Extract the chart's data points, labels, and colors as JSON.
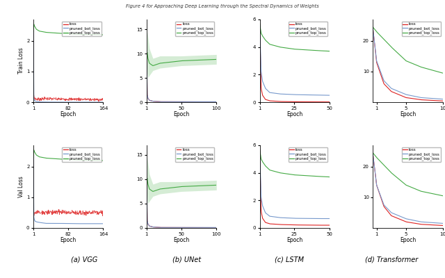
{
  "fig_title": "Figure 4 for Approaching Deep Learning through the Spectral Dynamics of Weights",
  "subtitle_labels": [
    "(a) VGG",
    "(b) UNet",
    "(c) LSTM",
    "(d) Transformer"
  ],
  "legend_labels": [
    "loss",
    "pruned_bot_loss",
    "pruned_top_loss"
  ],
  "line_colors": [
    "#dd2222",
    "#7799cc",
    "#44aa44"
  ],
  "subplots": {
    "vgg": {
      "train": {
        "xlim": [
          1,
          164
        ],
        "ylim": [
          0,
          2.7
        ],
        "xticks": [
          1,
          82,
          164
        ],
        "yticks": [
          0,
          1,
          2
        ],
        "loss_x": [
          1,
          2,
          3,
          5,
          8,
          15,
          30,
          60,
          100,
          164
        ],
        "loss_y": [
          2.3,
          0.25,
          0.15,
          0.12,
          0.1,
          0.1,
          0.12,
          0.1,
          0.1,
          0.08
        ],
        "loss_noise": 0.025,
        "bot_x": [
          1,
          2,
          3,
          5,
          8,
          15,
          30,
          60,
          100,
          164
        ],
        "bot_y": [
          2.3,
          0.12,
          0.07,
          0.04,
          0.02,
          0.01,
          0.005,
          0.002,
          0.002,
          0.001
        ],
        "top_x": [
          1,
          2,
          3,
          5,
          8,
          15,
          30,
          60,
          100,
          164
        ],
        "top_y": [
          2.3,
          2.55,
          2.5,
          2.45,
          2.38,
          2.32,
          2.28,
          2.25,
          2.22,
          2.2
        ]
      },
      "val": {
        "xlim": [
          1,
          164
        ],
        "ylim": [
          0,
          2.7
        ],
        "xticks": [
          1,
          82,
          164
        ],
        "yticks": [
          0,
          1,
          2
        ],
        "loss_x": [
          1,
          2,
          3,
          5,
          8,
          15,
          30,
          60,
          100,
          164
        ],
        "loss_y": [
          2.3,
          0.55,
          0.5,
          0.5,
          0.52,
          0.5,
          0.5,
          0.52,
          0.5,
          0.5
        ],
        "loss_noise": 0.04,
        "bot_x": [
          1,
          2,
          3,
          5,
          8,
          15,
          30,
          60,
          100,
          164
        ],
        "bot_y": [
          2.3,
          0.35,
          0.28,
          0.22,
          0.2,
          0.18,
          0.15,
          0.15,
          0.14,
          0.14
        ],
        "top_x": [
          1,
          2,
          3,
          5,
          8,
          15,
          30,
          60,
          100,
          164
        ],
        "top_y": [
          2.3,
          2.55,
          2.5,
          2.45,
          2.38,
          2.32,
          2.28,
          2.25,
          2.22,
          2.2
        ]
      }
    },
    "unet": {
      "train": {
        "xlim": [
          1,
          100
        ],
        "ylim": [
          0,
          17
        ],
        "xticks": [
          1,
          50,
          100
        ],
        "yticks": [
          0,
          5,
          10,
          15
        ],
        "loss_x": [
          1,
          2,
          3,
          5,
          10,
          20,
          50,
          100
        ],
        "loss_y": [
          10.0,
          1.5,
          0.8,
          0.4,
          0.2,
          0.1,
          0.08,
          0.06
        ],
        "loss_noise": 0.0,
        "bot_x": [
          1,
          2,
          3,
          5,
          10,
          20,
          50,
          100
        ],
        "bot_y": [
          10.0,
          1.5,
          0.8,
          0.4,
          0.2,
          0.1,
          0.1,
          0.1
        ],
        "top_x": [
          1,
          2,
          3,
          5,
          10,
          20,
          50,
          100
        ],
        "top_y": [
          10.0,
          10.2,
          9.0,
          8.0,
          7.5,
          8.0,
          8.5,
          8.8
        ],
        "top_band_low": [
          10.0,
          6.0,
          5.0,
          5.5,
          6.5,
          7.0,
          7.5,
          7.8
        ],
        "top_band_high": [
          10.0,
          14.5,
          13.5,
          11.0,
          9.0,
          9.5,
          9.5,
          9.8
        ]
      },
      "val": {
        "xlim": [
          1,
          100
        ],
        "ylim": [
          0,
          17
        ],
        "xticks": [
          1,
          50,
          100
        ],
        "yticks": [
          0,
          5,
          10,
          15
        ],
        "loss_x": [
          1,
          2,
          3,
          5,
          10,
          20,
          50,
          100
        ],
        "loss_y": [
          10.0,
          1.5,
          0.8,
          0.4,
          0.2,
          0.1,
          0.08,
          0.06
        ],
        "loss_noise": 0.0,
        "bot_x": [
          1,
          2,
          3,
          5,
          10,
          20,
          50,
          100
        ],
        "bot_y": [
          10.0,
          1.5,
          0.8,
          0.4,
          0.2,
          0.1,
          0.1,
          0.1
        ],
        "top_x": [
          1,
          2,
          3,
          5,
          10,
          20,
          50,
          100
        ],
        "top_y": [
          10.0,
          10.2,
          9.0,
          8.0,
          7.5,
          8.0,
          8.5,
          8.8
        ],
        "top_band_low": [
          10.0,
          6.0,
          5.0,
          5.5,
          6.5,
          7.0,
          7.5,
          7.8
        ],
        "top_band_high": [
          10.0,
          14.5,
          13.5,
          11.0,
          9.0,
          9.5,
          9.5,
          9.8
        ]
      }
    },
    "lstm": {
      "train": {
        "xlim": [
          1,
          50
        ],
        "ylim": [
          0,
          6
        ],
        "xticks": [
          1,
          25,
          50
        ],
        "yticks": [
          0,
          2,
          4,
          6
        ],
        "loss_x": [
          1,
          2,
          3,
          5,
          8,
          15,
          25,
          40,
          50
        ],
        "loss_y": [
          5.7,
          1.0,
          0.5,
          0.2,
          0.1,
          0.05,
          0.03,
          0.02,
          0.02
        ],
        "loss_noise": 0.0,
        "bot_x": [
          1,
          2,
          3,
          5,
          8,
          15,
          25,
          40,
          50
        ],
        "bot_y": [
          5.7,
          2.2,
          1.5,
          1.0,
          0.7,
          0.6,
          0.55,
          0.52,
          0.5
        ],
        "top_x": [
          1,
          2,
          3,
          5,
          8,
          15,
          25,
          40,
          50
        ],
        "top_y": [
          5.7,
          5.0,
          4.8,
          4.5,
          4.2,
          4.0,
          3.85,
          3.75,
          3.7
        ]
      },
      "val": {
        "xlim": [
          1,
          50
        ],
        "ylim": [
          0,
          6
        ],
        "xticks": [
          1,
          25,
          50
        ],
        "yticks": [
          0,
          2,
          4,
          6
        ],
        "loss_x": [
          1,
          2,
          3,
          5,
          8,
          15,
          25,
          40,
          50
        ],
        "loss_y": [
          5.7,
          1.2,
          0.7,
          0.4,
          0.3,
          0.25,
          0.22,
          0.2,
          0.2
        ],
        "loss_noise": 0.0,
        "bot_x": [
          1,
          2,
          3,
          5,
          8,
          15,
          25,
          40,
          50
        ],
        "bot_y": [
          5.7,
          2.2,
          1.6,
          1.1,
          0.85,
          0.75,
          0.7,
          0.68,
          0.68
        ],
        "top_x": [
          1,
          2,
          3,
          5,
          8,
          15,
          25,
          40,
          50
        ],
        "top_y": [
          5.7,
          5.0,
          4.8,
          4.5,
          4.2,
          4.0,
          3.85,
          3.75,
          3.7
        ]
      }
    },
    "transformer": {
      "train": {
        "xlim": [
          0.5,
          10
        ],
        "ylim": [
          0,
          27
        ],
        "xticks": [
          1,
          5,
          10
        ],
        "yticks": [
          10,
          20
        ],
        "loss_x": [
          0.5,
          1,
          2,
          3,
          5,
          7,
          10
        ],
        "loss_y": [
          24.0,
          13.0,
          6.0,
          3.5,
          1.5,
          0.8,
          0.4
        ],
        "loss_noise": 0.0,
        "bot_x": [
          0.5,
          1,
          2,
          3,
          5,
          7,
          10
        ],
        "bot_y": [
          24.0,
          13.5,
          7.0,
          4.5,
          2.5,
          1.5,
          1.0
        ],
        "top_x": [
          0.5,
          1,
          2,
          3,
          5,
          7,
          10
        ],
        "top_y": [
          24.5,
          23.0,
          20.5,
          18.0,
          13.5,
          11.5,
          9.5
        ]
      },
      "val": {
        "xlim": [
          0.5,
          10
        ],
        "ylim": [
          0,
          27
        ],
        "xticks": [
          1,
          5,
          10
        ],
        "yticks": [
          10,
          20
        ],
        "loss_x": [
          0.5,
          1,
          2,
          3,
          5,
          7,
          10
        ],
        "loss_y": [
          24.0,
          14.0,
          7.0,
          4.0,
          2.0,
          1.2,
          0.8
        ],
        "loss_noise": 0.0,
        "bot_x": [
          0.5,
          1,
          2,
          3,
          5,
          7,
          10
        ],
        "bot_y": [
          24.0,
          14.0,
          7.5,
          5.0,
          3.0,
          2.0,
          1.5
        ],
        "top_x": [
          0.5,
          1,
          2,
          3,
          5,
          7,
          10
        ],
        "top_y": [
          24.5,
          23.0,
          20.5,
          18.0,
          14.0,
          12.0,
          10.5
        ]
      }
    }
  }
}
